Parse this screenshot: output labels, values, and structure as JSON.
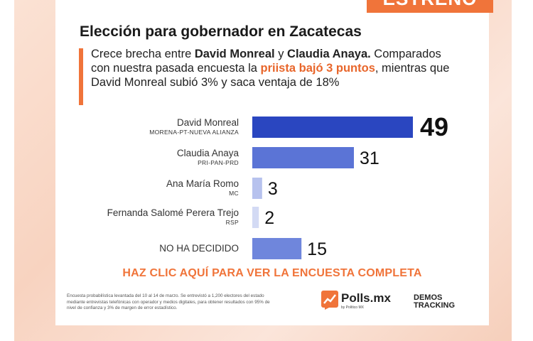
{
  "badge": "ESTRENO",
  "header": {
    "title": "Elección para gobernador en Zacatecas",
    "sub_1": "Crece brecha entre ",
    "sub_2": "David Monreal",
    "sub_3": " y ",
    "sub_4": "Claudia Anaya.",
    "sub_5": " Comparados con nuestra pasada encuesta la ",
    "sub_6": "priista bajó 3 puntos",
    "sub_7": ", mientras que David Monreal subió 3% y saca ventaja de 18%"
  },
  "chart_data": {
    "type": "bar",
    "orientation": "horizontal",
    "categories": [
      "David Monreal",
      "Claudia Anaya",
      "Ana María Romo",
      "Fernanda Salomé Perera Trejo",
      "NO HA DECIDIDO"
    ],
    "parties": [
      "MORENA-PT-NUEVA ALIANZA",
      "PRI-PAN-PRD",
      "MC",
      "RSP",
      ""
    ],
    "values": [
      49,
      31,
      3,
      2,
      15
    ],
    "value_labels": [
      "49",
      "31",
      "3",
      "2",
      "15"
    ],
    "colors": [
      "#2a46c0",
      "#5b74d6",
      "#b7c2ee",
      "#d3daf4",
      "#6f86dc"
    ],
    "xlim": [
      0,
      49
    ]
  },
  "cta": "HAZ CLIC AQUÍ PARA VER LA ENCUESTA COMPLETA",
  "footer": {
    "methodology": "Encuesta probabilística levantada del 10 al 14 de marzo. Se entrevistó a 1,200 electores del estado mediante entrevistas telefónicas con operador y medios digitales, para obtener resultados con 95% de nivel de confianza y 3% de margen de error estadístico.",
    "polls_brand": "Polls.mx",
    "polls_sub": "by Político MX",
    "demos_line1": "DEMOS",
    "demos_line2": "TRACKING"
  }
}
